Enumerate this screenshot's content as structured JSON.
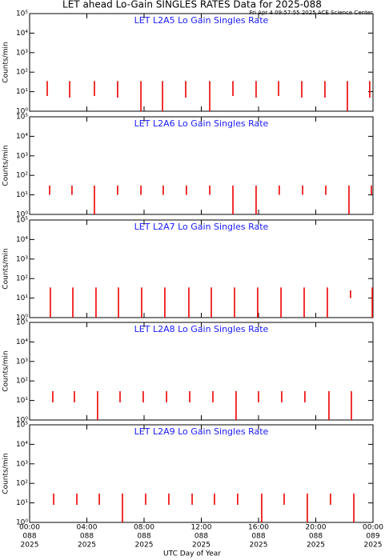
{
  "title": "LET ahead Lo-Gain SINGLES RATES Data for 2025-088",
  "subtitle": "Fri Apr  4 09:57:55 2025 ACE Science Center",
  "xlabel": "UTC Day of Year",
  "xlim": [
    0,
    24
  ],
  "xticks": [
    {
      "value": 0,
      "label": "00:00"
    },
    {
      "value": 4,
      "label": "04:00"
    },
    {
      "value": 8,
      "label": "08:00"
    },
    {
      "value": 12,
      "label": "12:00"
    },
    {
      "value": 16,
      "label": "16:00"
    },
    {
      "value": 20,
      "label": "20:00"
    },
    {
      "value": 24,
      "label": "00:00"
    }
  ],
  "xtick_days": [
    "088",
    "088",
    "088",
    "088",
    "088",
    "088",
    "089"
  ],
  "xtick_years": [
    "2025",
    "2025",
    "2025",
    "2025",
    "2025",
    "2025",
    "2025"
  ],
  "chart_data": [
    {
      "type": "spike",
      "title": "LET  L2A5  Lo Gain  Singles Rate",
      "ylabel": "Counts/min",
      "log_y": true,
      "color": "#ee0000",
      "ylim": [
        1,
        100000
      ],
      "yticks": [
        {
          "value": 1,
          "label": "10⁰"
        },
        {
          "value": 10,
          "label": "10¹"
        },
        {
          "value": 100,
          "label": "10²"
        },
        {
          "value": 1000,
          "label": "10³"
        },
        {
          "value": 10000,
          "label": "10⁴"
        },
        {
          "value": 100000,
          "label": "10⁵"
        }
      ],
      "x": [
        1.23,
        2.8,
        4.53,
        6.15,
        7.78,
        9.29,
        10.91,
        12.59,
        14.21,
        15.83,
        17.4,
        19.02,
        20.64,
        22.21,
        23.77
      ],
      "high": [
        35,
        35,
        35,
        35,
        35,
        35,
        35,
        35,
        35,
        35,
        35,
        35,
        35,
        35,
        35
      ],
      "low": [
        6,
        5,
        6,
        5,
        1,
        1,
        5,
        1,
        6,
        5,
        6,
        5,
        5,
        1,
        5
      ]
    },
    {
      "type": "spike",
      "title": "LET  L2A6  Lo Gain  Singles Rate",
      "ylabel": "Counts/min",
      "log_y": true,
      "color": "#ee0000",
      "ylim": [
        1,
        100000
      ],
      "yticks": [
        {
          "value": 1,
          "label": "10⁰"
        },
        {
          "value": 10,
          "label": "10¹"
        },
        {
          "value": 100,
          "label": "10²"
        },
        {
          "value": 1000,
          "label": "10³"
        },
        {
          "value": 10000,
          "label": "10⁴"
        },
        {
          "value": 100000,
          "label": "10⁵"
        }
      ],
      "x": [
        1.4,
        2.96,
        4.53,
        6.15,
        7.78,
        9.34,
        10.96,
        12.59,
        14.21,
        15.83,
        17.45,
        19.08,
        20.7,
        22.32,
        23.89
      ],
      "high": [
        30,
        30,
        30,
        30,
        30,
        30,
        30,
        30,
        30,
        30,
        30,
        30,
        30,
        30,
        30
      ],
      "low": [
        10,
        10,
        1,
        10,
        10,
        10,
        10,
        10,
        1,
        1,
        10,
        10,
        10,
        1,
        10
      ]
    },
    {
      "type": "spike",
      "title": "LET  L2A7  Lo Gain  Singles Rate",
      "ylabel": "Counts/min",
      "log_y": true,
      "color": "#ee0000",
      "ylim": [
        1,
        100000
      ],
      "yticks": [
        {
          "value": 1,
          "label": "10⁰"
        },
        {
          "value": 10,
          "label": "10¹"
        },
        {
          "value": 100,
          "label": "10²"
        },
        {
          "value": 1000,
          "label": "10³"
        },
        {
          "value": 10000,
          "label": "10⁴"
        },
        {
          "value": 100000,
          "label": "10⁵"
        }
      ],
      "x": [
        1.45,
        3.02,
        4.64,
        6.21,
        7.83,
        9.45,
        11.13,
        12.7,
        14.32,
        15.94,
        17.57,
        19.19,
        20.81,
        22.43,
        23.95
      ],
      "high": [
        35,
        35,
        35,
        35,
        35,
        35,
        35,
        35,
        35,
        35,
        35,
        35,
        35,
        25,
        35
      ],
      "low": [
        1,
        1,
        1,
        1,
        1,
        1,
        1,
        1,
        1,
        1,
        1,
        1,
        1,
        10,
        1
      ]
    },
    {
      "type": "spike",
      "title": "LET  L2A8  Lo Gain  Singles Rate",
      "ylabel": "Counts/min",
      "log_y": true,
      "color": "#ee0000",
      "ylim": [
        1,
        100000
      ],
      "yticks": [
        {
          "value": 1,
          "label": "10⁰"
        },
        {
          "value": 10,
          "label": "10¹"
        },
        {
          "value": 100,
          "label": "10²"
        },
        {
          "value": 1000,
          "label": "10³"
        },
        {
          "value": 10000,
          "label": "10⁴"
        },
        {
          "value": 100000,
          "label": "10⁵"
        }
      ],
      "x": [
        1.62,
        3.13,
        4.75,
        6.32,
        7.94,
        9.57,
        11.19,
        12.81,
        14.43,
        16.0,
        17.62,
        19.24,
        20.92,
        22.49
      ],
      "high": [
        30,
        30,
        30,
        30,
        30,
        30,
        30,
        30,
        30,
        30,
        30,
        30,
        30,
        30
      ],
      "low": [
        8,
        8,
        1,
        8,
        8,
        8,
        8,
        8,
        1,
        8,
        8,
        8,
        1,
        1
      ]
    },
    {
      "type": "spike",
      "title": "LET  L2A9  Lo Gain  Singles Rate",
      "ylabel": "Counts/min",
      "log_y": true,
      "color": "#ee0000",
      "ylim": [
        1,
        100000
      ],
      "yticks": [
        {
          "value": 1,
          "label": "10⁰"
        },
        {
          "value": 10,
          "label": "10¹"
        },
        {
          "value": 100,
          "label": "10²"
        },
        {
          "value": 1000,
          "label": "10³"
        },
        {
          "value": 10000,
          "label": "10⁴"
        },
        {
          "value": 100000,
          "label": "10⁵"
        }
      ],
      "x": [
        1.68,
        3.3,
        4.87,
        6.49,
        8.11,
        9.73,
        11.36,
        12.92,
        14.54,
        16.22,
        17.79,
        19.41,
        21.03,
        22.66
      ],
      "high": [
        30,
        30,
        30,
        30,
        30,
        30,
        30,
        30,
        30,
        30,
        30,
        30,
        30,
        30
      ],
      "low": [
        8,
        8,
        8,
        1,
        8,
        8,
        8,
        8,
        8,
        1,
        8,
        1,
        8,
        1
      ]
    }
  ]
}
